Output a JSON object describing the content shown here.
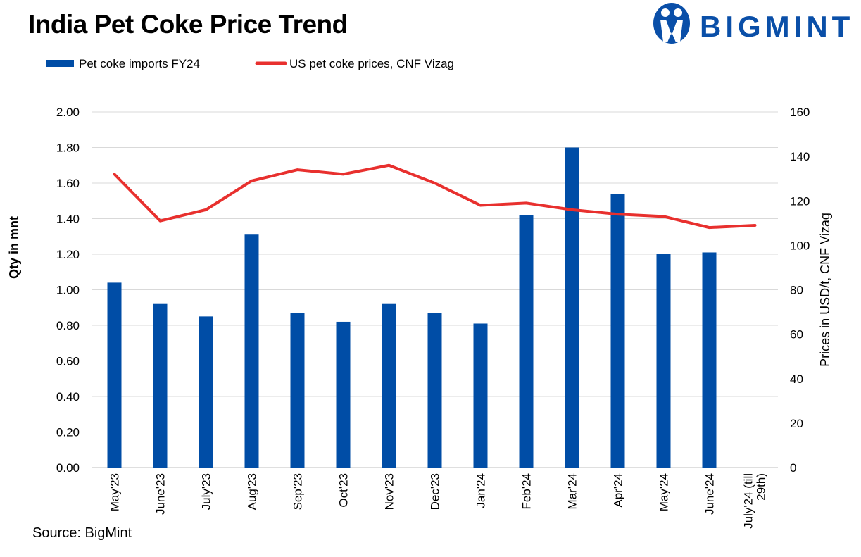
{
  "title": "India Pet Coke Price Trend",
  "logo_text": "BIGMINT",
  "source": "Source: BigMint",
  "colors": {
    "bar": "#004da6",
    "line": "#e8302e",
    "logo": "#0a4fa8"
  },
  "chart_data": {
    "type": "bar+line",
    "categories": [
      "May'23",
      "June'23",
      "July'23",
      "Aug'23",
      "Sep'23",
      "Oct'23",
      "Nov'23",
      "Dec'23",
      "Jan'24",
      "Feb'24",
      "Mar'24",
      "Apr'24",
      "May'24",
      "June'24",
      "July'24 (till 29th)"
    ],
    "series": [
      {
        "name": "Pet coke imports FY24",
        "type": "bar",
        "axis": "left",
        "values": [
          1.04,
          0.92,
          0.85,
          1.31,
          0.87,
          0.82,
          0.92,
          0.87,
          0.81,
          1.42,
          1.8,
          1.54,
          1.2,
          1.21,
          null
        ]
      },
      {
        "name": "US pet coke prices, CNF Vizag",
        "type": "line",
        "axis": "right",
        "values": [
          132,
          111,
          116,
          129,
          134,
          132,
          136,
          128,
          118,
          119,
          116,
          114,
          113,
          108,
          109
        ]
      }
    ],
    "ylabel": "Qty in mnt",
    "y2label": "Prices in USD/t, CNF Vizag",
    "ylim": [
      0,
      2.0
    ],
    "y2lim": [
      0,
      160
    ],
    "yticks": [
      "0.00",
      "0.20",
      "0.40",
      "0.60",
      "0.80",
      "1.00",
      "1.20",
      "1.40",
      "1.60",
      "1.80",
      "2.00"
    ],
    "y2ticks": [
      "0",
      "20",
      "40",
      "60",
      "80",
      "100",
      "120",
      "140",
      "160"
    ],
    "grid": true,
    "legend": "top-left"
  }
}
